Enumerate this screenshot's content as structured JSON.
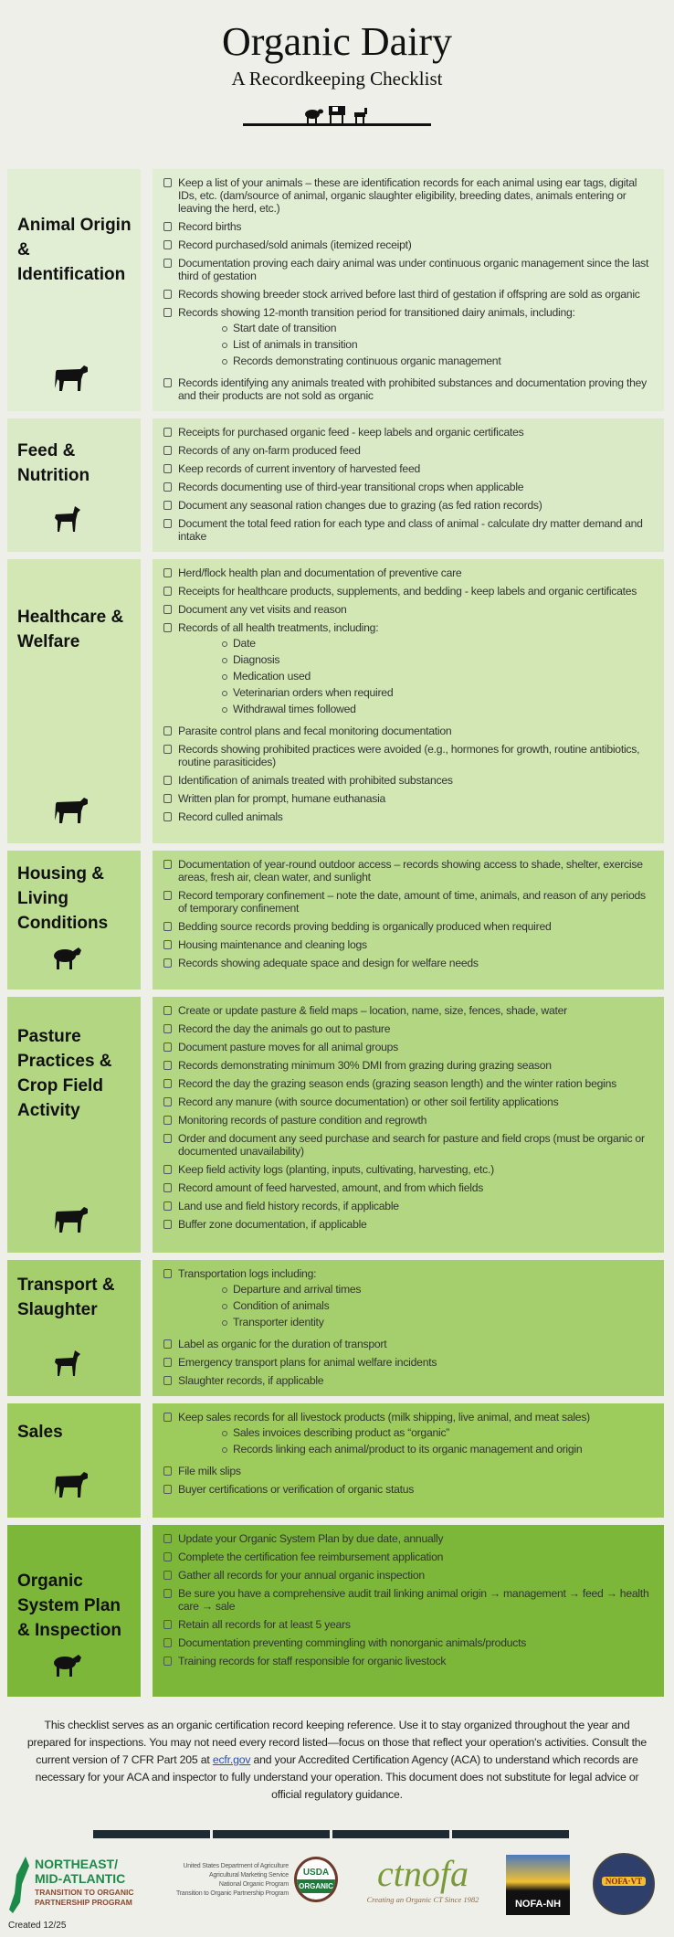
{
  "header": {
    "title": "Organic Dairy",
    "subtitle": "A Recordkeeping Checklist"
  },
  "colors": {
    "s1": "#e1eed3",
    "s2": "#daeac6",
    "s3": "#d2e7b4",
    "s4": "#bcdc92",
    "s5": "#b2d682",
    "s6": "#a5cf6c",
    "s7": "#9dcb5c",
    "s8": "#7cb73a"
  },
  "sections": [
    {
      "title": "Animal Origin & Identification",
      "icon": "cow-icon",
      "items": [
        {
          "text": "Keep a list of your animals – these are identification records for each animal using ear tags, digital IDs, etc. (dam/source of animal, organic slaughter eligibility, breeding dates, animals entering or leaving the herd, etc.)"
        },
        {
          "text": "Record births"
        },
        {
          "text": "Record purchased/sold animals (itemized receipt)"
        },
        {
          "text": "Documentation proving each dairy animal was under continuous organic management since the last third of gestation"
        },
        {
          "text": "Records showing breeder stock arrived before last third of gestation if offspring are sold as organic"
        },
        {
          "text": "Records showing 12-month transition period for transitioned dairy animals, including:",
          "subs": [
            "Start date of transition",
            "List of animals in transition",
            "Records demonstrating continuous organic management"
          ]
        },
        {
          "text": "Records identifying any animals treated with prohibited substances and documentation proving they and their products are not sold as organic"
        }
      ]
    },
    {
      "title": "Feed & Nutrition",
      "icon": "goat-icon",
      "items": [
        {
          "text": "Receipts for purchased organic feed - keep labels and organic certificates"
        },
        {
          "text": "Records of any on-farm produced feed"
        },
        {
          "text": "Keep records of current inventory of harvested feed"
        },
        {
          "text": "Records documenting use of third-year transitional crops when applicable"
        },
        {
          "text": "Document any seasonal ration changes due to grazing (as fed ration records)"
        },
        {
          "text": "Document the total feed ration for each type and class of animal - calculate dry matter demand and intake"
        }
      ]
    },
    {
      "title": "Healthcare & Welfare",
      "icon": "cow-icon",
      "items": [
        {
          "text": "Herd/flock health plan and documentation of preventive care"
        },
        {
          "text": "Receipts for healthcare products, supplements, and bedding - keep labels and organic certificates"
        },
        {
          "text": "Document any vet visits and reason"
        },
        {
          "text": "Records of all health treatments, including:",
          "subs": [
            "Date",
            "Diagnosis",
            "Medication used",
            "Veterinarian orders when required",
            "Withdrawal times followed"
          ]
        },
        {
          "text": "Parasite control plans and fecal monitoring documentation"
        },
        {
          "text": "Records showing prohibited practices were avoided (e.g., hormones for growth, routine antibiotics, routine parasiticides)"
        },
        {
          "text": "Identification of animals treated with prohibited substances"
        },
        {
          "text": "Written plan for prompt, humane euthanasia"
        },
        {
          "text": "Record culled animals"
        }
      ]
    },
    {
      "title": "Housing & Living Conditions",
      "icon": "sheep-icon",
      "items": [
        {
          "text": "Documentation of year-round outdoor access – records showing access to shade, shelter, exercise areas, fresh air, clean water, and sunlight"
        },
        {
          "text": "Record temporary confinement – note the date, amount of time, animals, and reason of any periods of temporary confinement"
        },
        {
          "text": "Bedding source records proving bedding is organically produced when required"
        },
        {
          "text": "Housing maintenance and cleaning logs"
        },
        {
          "text": "Records showing adequate space and design for welfare needs"
        }
      ]
    },
    {
      "title": "Pasture Practices & Crop Field Activity",
      "icon": "cow-icon",
      "items": [
        {
          "text": "Create or update pasture & field maps – location, name, size, fences, shade, water"
        },
        {
          "text": "Record the day the animals go out to pasture"
        },
        {
          "text": "Document pasture moves for all animal groups"
        },
        {
          "text": "Records demonstrating minimum 30% DMI from grazing during grazing season"
        },
        {
          "text": "Record the day the grazing season ends (grazing season length) and the winter ration begins"
        },
        {
          "text": "Record any manure (with source documentation) or other soil fertility applications"
        },
        {
          "text": "Monitoring records of pasture condition and regrowth"
        },
        {
          "text": "Order and document any seed purchase and search for pasture and field crops (must be organic or documented unavailability)"
        },
        {
          "text": "Keep field activity logs (planting, inputs, cultivating, harvesting, etc.)"
        },
        {
          "text": "Record amount of feed harvested, amount, and from which fields"
        },
        {
          "text": "Land use and field history records, if applicable"
        },
        {
          "text": "Buffer zone documentation, if applicable"
        }
      ]
    },
    {
      "title": "Transport & Slaughter",
      "icon": "goat-icon",
      "items": [
        {
          "text": "Transportation logs including:",
          "subs": [
            "Departure and arrival times",
            "Condition of animals",
            "Transporter identity"
          ]
        },
        {
          "text": "Label as organic for the duration of transport"
        },
        {
          "text": "Emergency transport plans for animal welfare incidents"
        },
        {
          "text": "Slaughter records, if applicable"
        }
      ]
    },
    {
      "title": "Sales",
      "icon": "cow-icon",
      "items": [
        {
          "text": "Keep sales records for all livestock products (milk shipping, live animal, and meat sales)",
          "subs": [
            "Sales invoices describing product as “organic”",
            "Records linking each animal/product to its organic management and origin"
          ]
        },
        {
          "text": "File milk slips"
        },
        {
          "text": "Buyer certifications or verification of organic status"
        }
      ]
    },
    {
      "title": "Organic System Plan & Inspection",
      "icon": "sheep-icon",
      "items": [
        {
          "text": "Update your Organic System Plan by due date, annually"
        },
        {
          "text": "Complete the certification fee reimbursement application"
        },
        {
          "text": "Gather all records for your annual organic inspection"
        },
        {
          "text": "Be sure you have a comprehensive audit trail linking animal origin → management → feed → health care → sale"
        },
        {
          "text": "Retain all records for at least 5 years"
        },
        {
          "text": "Documentation preventing commingling with nonorganic animals/products"
        },
        {
          "text": "Training records for staff responsible for organic livestock"
        }
      ]
    }
  ],
  "footer": {
    "text_before": "This checklist serves as an organic certification record keeping reference. Use it to stay organized throughout the year and prepared for inspections. You may not need every record listed—focus on those that reflect your operation's activities. Consult the current version of 7 CFR Part 205 at ",
    "link": "ecfr.gov",
    "text_after": " and your Accredited Certification Agency (ACA) to understand which records are necessary for your ACA and inspector to fully understand your operation. This document does not substitute for legal advice or official regulatory guidance.",
    "created": "Created 12/25"
  },
  "logos": {
    "nemat": [
      "NORTHEAST/",
      "MID-ATLANTIC",
      "TRANSITION TO ORGANIC",
      "PARTNERSHIP PROGRAM"
    ],
    "usda_lines": [
      "United States Department of Agriculture",
      "Agricultural Marketing Service",
      "National Organic Program",
      "Transition to Organic Partnership Program"
    ],
    "usda_seal": [
      "USDA",
      "ORGANIC"
    ],
    "ctnofa": "ctnofa",
    "ctnofa_tag": "Creating an Organic CT Since 1982",
    "nofa_nh": "NOFA-NH",
    "nofa_vt": "NOFA·VT"
  }
}
